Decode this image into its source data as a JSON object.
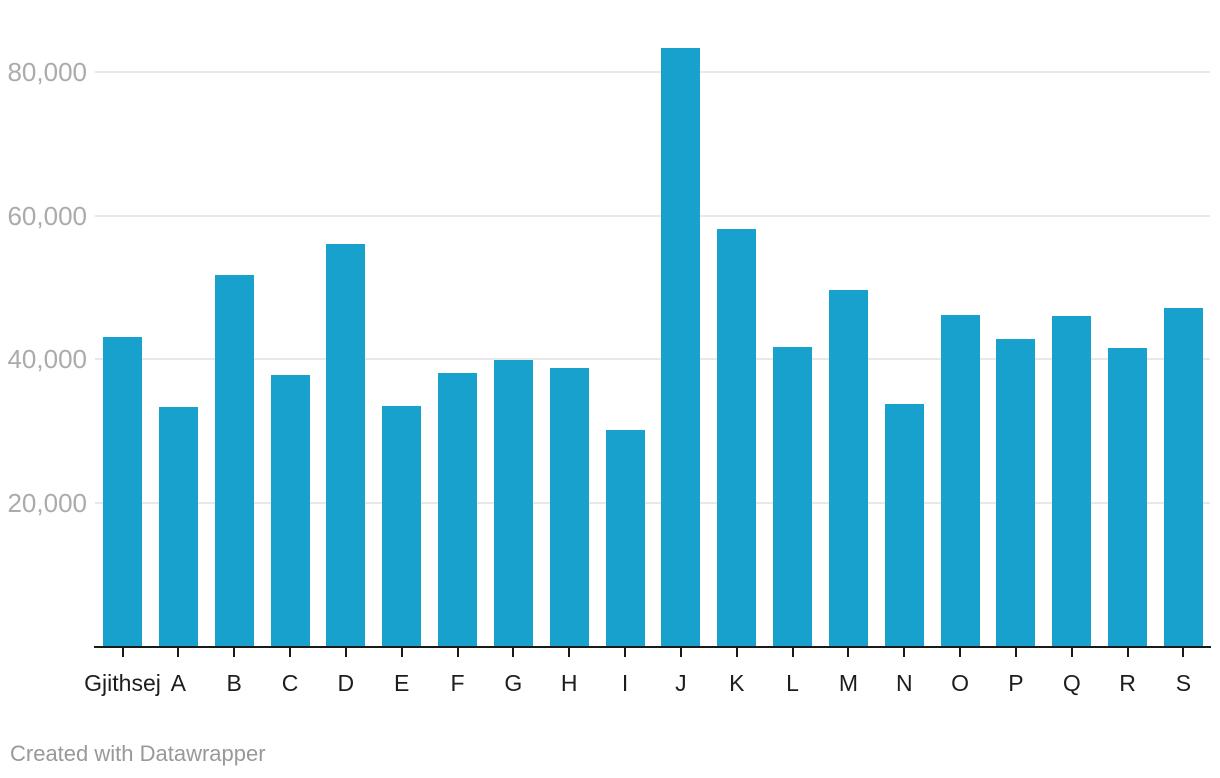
{
  "chart_data": {
    "type": "bar",
    "categories": [
      "Gjithsej",
      "A",
      "B",
      "C",
      "D",
      "E",
      "F",
      "G",
      "H",
      "I",
      "J",
      "K",
      "L",
      "M",
      "N",
      "O",
      "P",
      "Q",
      "R",
      "S"
    ],
    "values": [
      43100,
      33400,
      51800,
      37900,
      56100,
      33500,
      38100,
      39900,
      38800,
      30200,
      83300,
      58200,
      41700,
      49700,
      33800,
      46200,
      42900,
      46100,
      41600,
      47100
    ],
    "title": "",
    "xlabel": "",
    "ylabel": "",
    "ylim": [
      0,
      90000
    ],
    "yticks": [
      {
        "value": 20000,
        "label": "20,000"
      },
      {
        "value": 40000,
        "label": "40,000"
      },
      {
        "value": 60000,
        "label": "60,000"
      },
      {
        "value": 80000,
        "label": "80,000"
      }
    ],
    "grid": "horizontal-only",
    "legend": "none",
    "bar_color": "#18a1cd"
  },
  "footer": {
    "credit": "Created with Datawrapper"
  },
  "colors": {
    "bar": "#18a1cd",
    "grid": "#e8e8e8",
    "axis": "#1a1a1a",
    "y_label": "#ababab",
    "x_label": "#1d1d1d",
    "footer": "#999999",
    "background": "#ffffff"
  }
}
